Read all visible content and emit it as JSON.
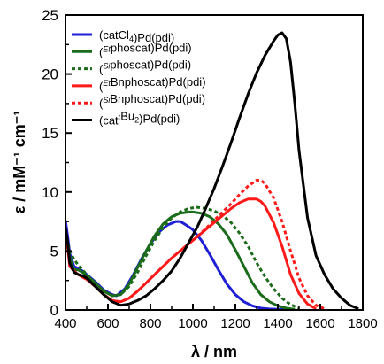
{
  "chart_data": {
    "type": "line",
    "title": "",
    "xlabel": "λ / nm",
    "ylabel": "ε / mM⁻¹ cm⁻¹",
    "xlim": [
      400,
      1800
    ],
    "ylim": [
      0,
      25
    ],
    "x_ticks": [
      400,
      600,
      800,
      1000,
      1200,
      1400,
      1600,
      1800
    ],
    "y_ticks": [
      0,
      5,
      10,
      15,
      20,
      25
    ],
    "grid": false,
    "legend_position": "top-left",
    "series": [
      {
        "name": "(catCl4)Pd(pdi)",
        "legend": [
          {
            "t": "(catCl"
          },
          {
            "t": "4",
            "sub": true
          },
          {
            "t": ")Pd(pdi)"
          }
        ],
        "color": "#1f1fd6",
        "dash": "solid",
        "x": [
          400,
          410,
          420,
          440,
          460,
          480,
          500,
          540,
          580,
          620,
          640,
          680,
          720,
          760,
          800,
          840,
          880,
          920,
          940,
          960,
          1000,
          1040,
          1080,
          1120,
          1160,
          1200,
          1240,
          1280,
          1320,
          1360,
          1400,
          1440,
          1480
        ],
        "y": [
          7.6,
          6.3,
          4.8,
          3.7,
          3.5,
          3.3,
          3.0,
          2.4,
          1.7,
          1.3,
          1.2,
          1.8,
          3.0,
          4.4,
          5.6,
          6.6,
          7.2,
          7.5,
          7.5,
          7.3,
          6.8,
          5.9,
          4.7,
          3.4,
          2.2,
          1.3,
          0.7,
          0.35,
          0.15,
          0.08,
          0.05,
          0.03,
          0.02
        ]
      },
      {
        "name": "(Etphoscat)Pd(pdi)",
        "legend": [
          {
            "t": "("
          },
          {
            "t": "Et",
            "sup": true,
            "it": true
          },
          {
            "t": "phoscat)Pd(pdi)"
          }
        ],
        "color": "#1a6b1a",
        "dash": "solid",
        "x": [
          400,
          410,
          420,
          440,
          460,
          480,
          500,
          540,
          580,
          620,
          660,
          700,
          740,
          780,
          820,
          860,
          900,
          940,
          980,
          1000,
          1040,
          1080,
          1120,
          1160,
          1200,
          1240,
          1280,
          1320,
          1360,
          1400,
          1440,
          1480
        ],
        "y": [
          6.5,
          5.6,
          4.4,
          3.4,
          3.4,
          3.2,
          2.9,
          2.3,
          1.6,
          1.2,
          1.3,
          2.2,
          3.6,
          5.0,
          6.3,
          7.3,
          7.9,
          8.2,
          8.3,
          8.3,
          8.2,
          7.9,
          7.3,
          6.4,
          5.1,
          3.7,
          2.3,
          1.3,
          0.7,
          0.35,
          0.15,
          0.05
        ]
      },
      {
        "name": "(Siphoscat)Pd(pdi)",
        "legend": [
          {
            "t": "("
          },
          {
            "t": "Si",
            "sup": true,
            "it": true
          },
          {
            "t": "phoscat)Pd(pdi)"
          }
        ],
        "color": "#1a6b1a",
        "dash": "dotted",
        "x": [
          400,
          410,
          420,
          440,
          460,
          480,
          500,
          540,
          580,
          620,
          660,
          700,
          740,
          780,
          820,
          860,
          900,
          940,
          980,
          1020,
          1060,
          1100,
          1140,
          1180,
          1220,
          1260,
          1300,
          1340,
          1380,
          1420,
          1460,
          1500
        ],
        "y": [
          6.6,
          5.8,
          5.0,
          4.3,
          3.8,
          3.4,
          3.0,
          2.3,
          1.6,
          1.2,
          1.3,
          2.0,
          3.2,
          4.6,
          5.9,
          7.0,
          7.8,
          8.3,
          8.6,
          8.7,
          8.6,
          8.4,
          8.0,
          7.4,
          6.5,
          5.4,
          4.0,
          2.8,
          1.8,
          1.0,
          0.45,
          0.15
        ]
      },
      {
        "name": "(EtBnphoscat)Pd(pdi)",
        "legend": [
          {
            "t": "("
          },
          {
            "t": "Et",
            "sup": true,
            "it": true
          },
          {
            "t": "Bnphoscat)Pd(pdi)"
          }
        ],
        "color": "#ff1a1a",
        "dash": "solid",
        "x": [
          400,
          410,
          420,
          440,
          460,
          480,
          500,
          540,
          580,
          620,
          660,
          700,
          740,
          780,
          820,
          860,
          900,
          940,
          980,
          1020,
          1060,
          1100,
          1140,
          1180,
          1220,
          1260,
          1300,
          1320,
          1340,
          1380,
          1420,
          1460,
          1500,
          1540,
          1580
        ],
        "y": [
          6.5,
          5.4,
          3.7,
          3.3,
          3.0,
          2.8,
          2.6,
          2.0,
          1.3,
          0.8,
          0.7,
          1.0,
          1.6,
          2.3,
          3.0,
          3.7,
          4.4,
          5.0,
          5.6,
          6.2,
          6.8,
          7.4,
          8.0,
          8.6,
          9.1,
          9.4,
          9.4,
          9.2,
          8.8,
          7.4,
          5.4,
          3.0,
          1.4,
          0.5,
          0.1
        ]
      },
      {
        "name": "(SiBnphoscat)Pd(pdi)",
        "legend": [
          {
            "t": "("
          },
          {
            "t": "Si",
            "sup": true,
            "it": true
          },
          {
            "t": "Bnphoscat)Pd(pdi)"
          }
        ],
        "color": "#ff1a1a",
        "dash": "dotted",
        "x": [
          400,
          410,
          420,
          440,
          460,
          480,
          500,
          540,
          580,
          620,
          660,
          700,
          740,
          780,
          820,
          860,
          900,
          940,
          980,
          1020,
          1060,
          1100,
          1140,
          1180,
          1220,
          1260,
          1300,
          1320,
          1340,
          1380,
          1420,
          1460,
          1500,
          1540,
          1580,
          1620
        ],
        "y": [
          6.5,
          5.4,
          3.7,
          3.3,
          3.0,
          2.8,
          2.6,
          2.0,
          1.3,
          0.8,
          0.7,
          1.0,
          1.6,
          2.3,
          3.0,
          3.7,
          4.4,
          5.0,
          5.6,
          6.2,
          6.9,
          7.6,
          8.3,
          9.0,
          9.8,
          10.5,
          11.0,
          11.0,
          10.7,
          9.5,
          7.5,
          5.0,
          2.7,
          1.2,
          0.4,
          0.1
        ]
      },
      {
        "name": "(cattBu2)Pd(pdi)",
        "legend": [
          {
            "t": "(cat"
          },
          {
            "t": "t",
            "sup": true
          },
          {
            "t": "Bu"
          },
          {
            "t": "2",
            "sub": true
          },
          {
            "t": ")Pd(pdi)"
          }
        ],
        "color": "#000000",
        "dash": "solid",
        "x": [
          400,
          410,
          420,
          440,
          460,
          480,
          500,
          540,
          580,
          620,
          660,
          700,
          740,
          780,
          820,
          860,
          900,
          940,
          980,
          1020,
          1060,
          1100,
          1140,
          1180,
          1220,
          1260,
          1300,
          1340,
          1380,
          1400,
          1420,
          1440,
          1460,
          1480,
          1500,
          1540,
          1580,
          1620,
          1660,
          1700,
          1740,
          1780
        ],
        "y": [
          7.0,
          5.8,
          4.0,
          3.2,
          3.0,
          2.9,
          2.7,
          2.0,
          1.3,
          0.7,
          0.4,
          0.5,
          0.8,
          1.2,
          1.8,
          2.5,
          3.3,
          4.4,
          5.7,
          7.0,
          8.6,
          10.3,
          12.2,
          14.2,
          16.3,
          18.3,
          20.1,
          21.6,
          22.8,
          23.3,
          23.5,
          23.0,
          21.0,
          17.5,
          13.5,
          7.8,
          4.6,
          3.0,
          1.8,
          1.0,
          0.4,
          0.1
        ]
      }
    ]
  }
}
